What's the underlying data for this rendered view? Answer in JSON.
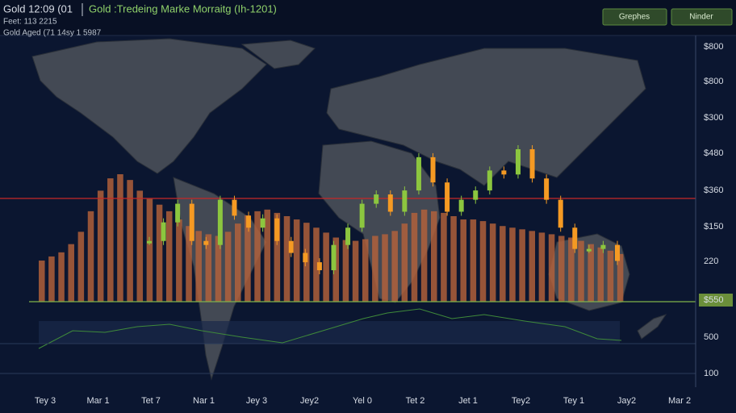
{
  "header": {
    "time": "Gold 12:09 (01",
    "title": "Gold :Tredeing Marke Morraitg (Ih-1201)",
    "line2": "Feet: 113 2215",
    "line3": "Gold Aged (71 14sy 1 5987"
  },
  "buttons": [
    "Grephes",
    "Ninder"
  ],
  "y_axis_labels": [
    "$800",
    "$800",
    "$300",
    "$480",
    "$360",
    "$150",
    "220",
    "$550",
    "500",
    "100"
  ],
  "x_axis_labels": [
    "Tey 3",
    "Mar 1",
    "Tet 7",
    "Nar 1",
    "Jey 3",
    "Jey2",
    "Yel 0",
    "Tet 2",
    "Jet 1",
    "Tey2",
    "Tey 1",
    "Jay2",
    "Mar 2"
  ],
  "chart": {
    "volume": [
      50,
      55,
      60,
      70,
      85,
      110,
      135,
      150,
      155,
      148,
      135,
      125,
      118,
      110,
      100,
      92,
      86,
      82,
      80,
      85,
      95,
      105,
      110,
      112,
      108,
      104,
      100,
      96,
      90,
      84,
      78,
      75,
      74,
      76,
      80,
      82,
      86,
      95,
      108,
      112,
      110,
      108,
      104,
      100,
      100,
      98,
      95,
      92,
      90,
      88,
      86,
      84,
      82,
      80,
      78,
      74,
      70,
      66,
      62,
      58
    ],
    "price": [
      31,
      45,
      59,
      31,
      28,
      62,
      50,
      41,
      48,
      31,
      22,
      15,
      9,
      28,
      41,
      59,
      66,
      53,
      69,
      94,
      75,
      53,
      62,
      69,
      84,
      81,
      100,
      78,
      62,
      41,
      25,
      25,
      28,
      16
    ]
  }
}
